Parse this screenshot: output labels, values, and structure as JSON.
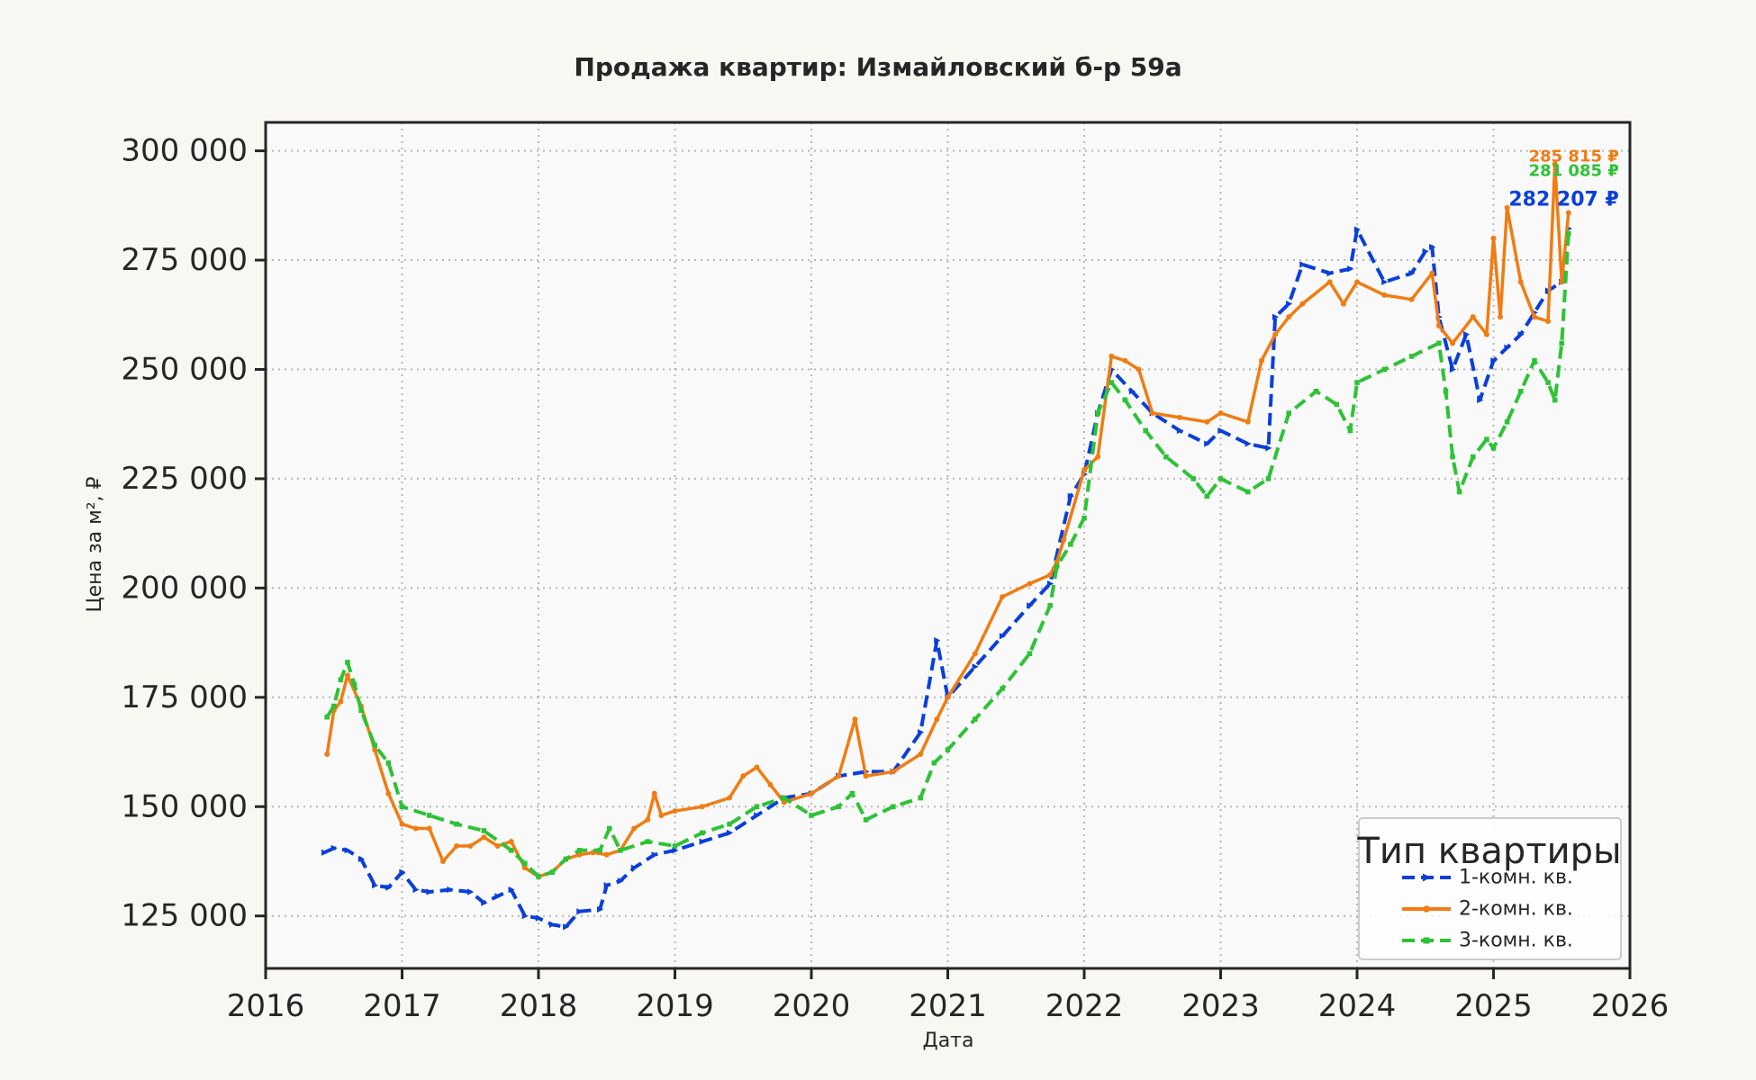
{
  "chart_data": {
    "type": "line",
    "title": "Продажа квартир: Измайловский б-р 59а",
    "xlabel": "Дата",
    "ylabel": "Цена за м², ₽",
    "xlim": [
      2016,
      2026
    ],
    "ylim": [
      113000,
      306500
    ],
    "x_ticks": [
      2016,
      2017,
      2018,
      2019,
      2020,
      2021,
      2022,
      2023,
      2024,
      2025,
      2026
    ],
    "x_tick_labels": [
      "2016",
      "2017",
      "2018",
      "2019",
      "2020",
      "2021",
      "2022",
      "2023",
      "2024",
      "2025",
      "2026"
    ],
    "y_ticks": [
      125000,
      150000,
      175000,
      200000,
      225000,
      250000,
      275000,
      300000
    ],
    "y_tick_labels": [
      "125 000",
      "150 000",
      "175 000",
      "200 000",
      "225 000",
      "250 000",
      "275 000",
      "300 000"
    ],
    "grid": true,
    "legend": {
      "title": "Тип квартиры",
      "position": "bottom-right"
    },
    "series": [
      {
        "name": "1-комн. кв.",
        "color": "#0a3fdb",
        "dash": "dashed",
        "marker": "triangle-right",
        "end_label": "282 207 ₽",
        "x": [
          2016.43,
          2016.5,
          2016.6,
          2016.7,
          2016.8,
          2016.9,
          2017.0,
          2017.1,
          2017.2,
          2017.35,
          2017.5,
          2017.6,
          2017.7,
          2017.8,
          2017.9,
          2018.0,
          2018.1,
          2018.2,
          2018.3,
          2018.45,
          2018.5,
          2018.6,
          2018.7,
          2018.85,
          2019.0,
          2019.2,
          2019.4,
          2019.6,
          2019.8,
          2020.0,
          2020.2,
          2020.4,
          2020.6,
          2020.8,
          2020.92,
          2021.0,
          2021.2,
          2021.4,
          2021.6,
          2021.75,
          2021.9,
          2022.0,
          2022.1,
          2022.2,
          2022.35,
          2022.5,
          2022.7,
          2022.9,
          2023.0,
          2023.2,
          2023.35,
          2023.4,
          2023.5,
          2023.6,
          2023.8,
          2023.95,
          2024.0,
          2024.2,
          2024.4,
          2024.5,
          2024.55,
          2024.6,
          2024.7,
          2024.8,
          2024.9,
          2025.0,
          2025.1,
          2025.2,
          2025.3,
          2025.4,
          2025.5,
          2025.55
        ],
        "y": [
          139500,
          140500,
          140000,
          138000,
          132000,
          131500,
          135000,
          131000,
          130500,
          131000,
          130500,
          128000,
          129500,
          131000,
          125000,
          124500,
          123000,
          122500,
          126000,
          126500,
          132000,
          133000,
          136000,
          139000,
          140000,
          142000,
          144000,
          148000,
          152000,
          153000,
          157000,
          158000,
          158000,
          167000,
          188000,
          175000,
          182000,
          189000,
          196000,
          201000,
          221000,
          226000,
          240000,
          250000,
          245000,
          240000,
          236000,
          233000,
          236000,
          233000,
          232000,
          262000,
          265000,
          274000,
          272000,
          273000,
          282000,
          270000,
          272000,
          277000,
          278000,
          262000,
          250000,
          258000,
          243000,
          252000,
          255000,
          258000,
          263000,
          268000,
          270000,
          282207
        ]
      },
      {
        "name": "2-комн. кв.",
        "color": "#f07c12",
        "dash": "solid",
        "marker": "circle",
        "end_label": "285 815 ₽",
        "x": [
          2016.45,
          2016.5,
          2016.55,
          2016.6,
          2016.7,
          2016.8,
          2016.9,
          2017.0,
          2017.1,
          2017.2,
          2017.3,
          2017.4,
          2017.5,
          2017.6,
          2017.7,
          2017.8,
          2017.9,
          2018.0,
          2018.1,
          2018.2,
          2018.3,
          2018.4,
          2018.5,
          2018.6,
          2018.7,
          2018.8,
          2018.85,
          2018.9,
          2019.0,
          2019.2,
          2019.4,
          2019.5,
          2019.6,
          2019.7,
          2019.8,
          2020.0,
          2020.2,
          2020.32,
          2020.4,
          2020.6,
          2020.8,
          2020.92,
          2021.0,
          2021.2,
          2021.4,
          2021.6,
          2021.75,
          2021.8,
          2021.85,
          2022.0,
          2022.1,
          2022.2,
          2022.3,
          2022.4,
          2022.5,
          2022.7,
          2022.9,
          2023.0,
          2023.2,
          2023.3,
          2023.4,
          2023.5,
          2023.6,
          2023.8,
          2023.9,
          2024.0,
          2024.2,
          2024.4,
          2024.55,
          2024.6,
          2024.7,
          2024.85,
          2024.95,
          2025.0,
          2025.05,
          2025.1,
          2025.2,
          2025.3,
          2025.4,
          2025.45,
          2025.5,
          2025.55
        ],
        "y": [
          162000,
          172000,
          174000,
          180000,
          173000,
          163000,
          153000,
          146000,
          145000,
          145000,
          137500,
          141000,
          141000,
          143000,
          141000,
          142000,
          136000,
          134000,
          135000,
          138000,
          139000,
          139500,
          139000,
          140000,
          145000,
          147000,
          153000,
          148000,
          149000,
          150000,
          152000,
          157000,
          159000,
          155000,
          151000,
          153000,
          157000,
          170000,
          157000,
          158000,
          162000,
          170000,
          175000,
          185000,
          198000,
          201000,
          203000,
          206000,
          211000,
          227000,
          230000,
          253000,
          252000,
          250000,
          240000,
          239000,
          238000,
          240000,
          238000,
          252000,
          258000,
          262000,
          265000,
          270000,
          265000,
          270000,
          267000,
          266000,
          272000,
          260000,
          256000,
          262000,
          258000,
          280000,
          262000,
          287000,
          270000,
          262000,
          261000,
          297000,
          270000,
          285815
        ]
      },
      {
        "name": "3-комн. кв.",
        "color": "#2ec236",
        "dash": "dashed",
        "marker": "square",
        "end_label": "281 085 ₽",
        "x": [
          2016.45,
          2016.5,
          2016.55,
          2016.6,
          2016.65,
          2016.7,
          2016.8,
          2016.9,
          2017.0,
          2017.2,
          2017.4,
          2017.6,
          2017.8,
          2017.9,
          2018.0,
          2018.1,
          2018.2,
          2018.3,
          2018.45,
          2018.52,
          2018.6,
          2018.8,
          2019.0,
          2019.2,
          2019.4,
          2019.6,
          2019.8,
          2020.0,
          2020.2,
          2020.3,
          2020.4,
          2020.6,
          2020.8,
          2020.9,
          2021.0,
          2021.2,
          2021.4,
          2021.6,
          2021.75,
          2021.8,
          2021.9,
          2022.0,
          2022.1,
          2022.2,
          2022.3,
          2022.45,
          2022.6,
          2022.8,
          2022.9,
          2023.0,
          2023.2,
          2023.35,
          2023.5,
          2023.7,
          2023.85,
          2023.95,
          2024.0,
          2024.2,
          2024.4,
          2024.6,
          2024.65,
          2024.7,
          2024.75,
          2024.85,
          2024.95,
          2025.0,
          2025.1,
          2025.2,
          2025.3,
          2025.4,
          2025.45,
          2025.5,
          2025.55
        ],
        "y": [
          170500,
          173000,
          179000,
          183000,
          178000,
          172000,
          164000,
          160000,
          150000,
          148000,
          146000,
          144500,
          140000,
          137000,
          134000,
          135000,
          138000,
          140000,
          140000,
          145000,
          140000,
          142000,
          141000,
          144000,
          146000,
          150000,
          152000,
          148000,
          150000,
          153000,
          147000,
          150000,
          152000,
          160000,
          163000,
          170000,
          177000,
          185000,
          196000,
          205000,
          210000,
          216000,
          240000,
          247000,
          243000,
          236000,
          230000,
          225000,
          221000,
          225000,
          222000,
          225000,
          240000,
          245000,
          242000,
          236000,
          247000,
          250000,
          253000,
          256000,
          245000,
          230000,
          222000,
          230000,
          234000,
          232000,
          238000,
          245000,
          252000,
          247000,
          243000,
          256000,
          281085
        ]
      }
    ]
  }
}
